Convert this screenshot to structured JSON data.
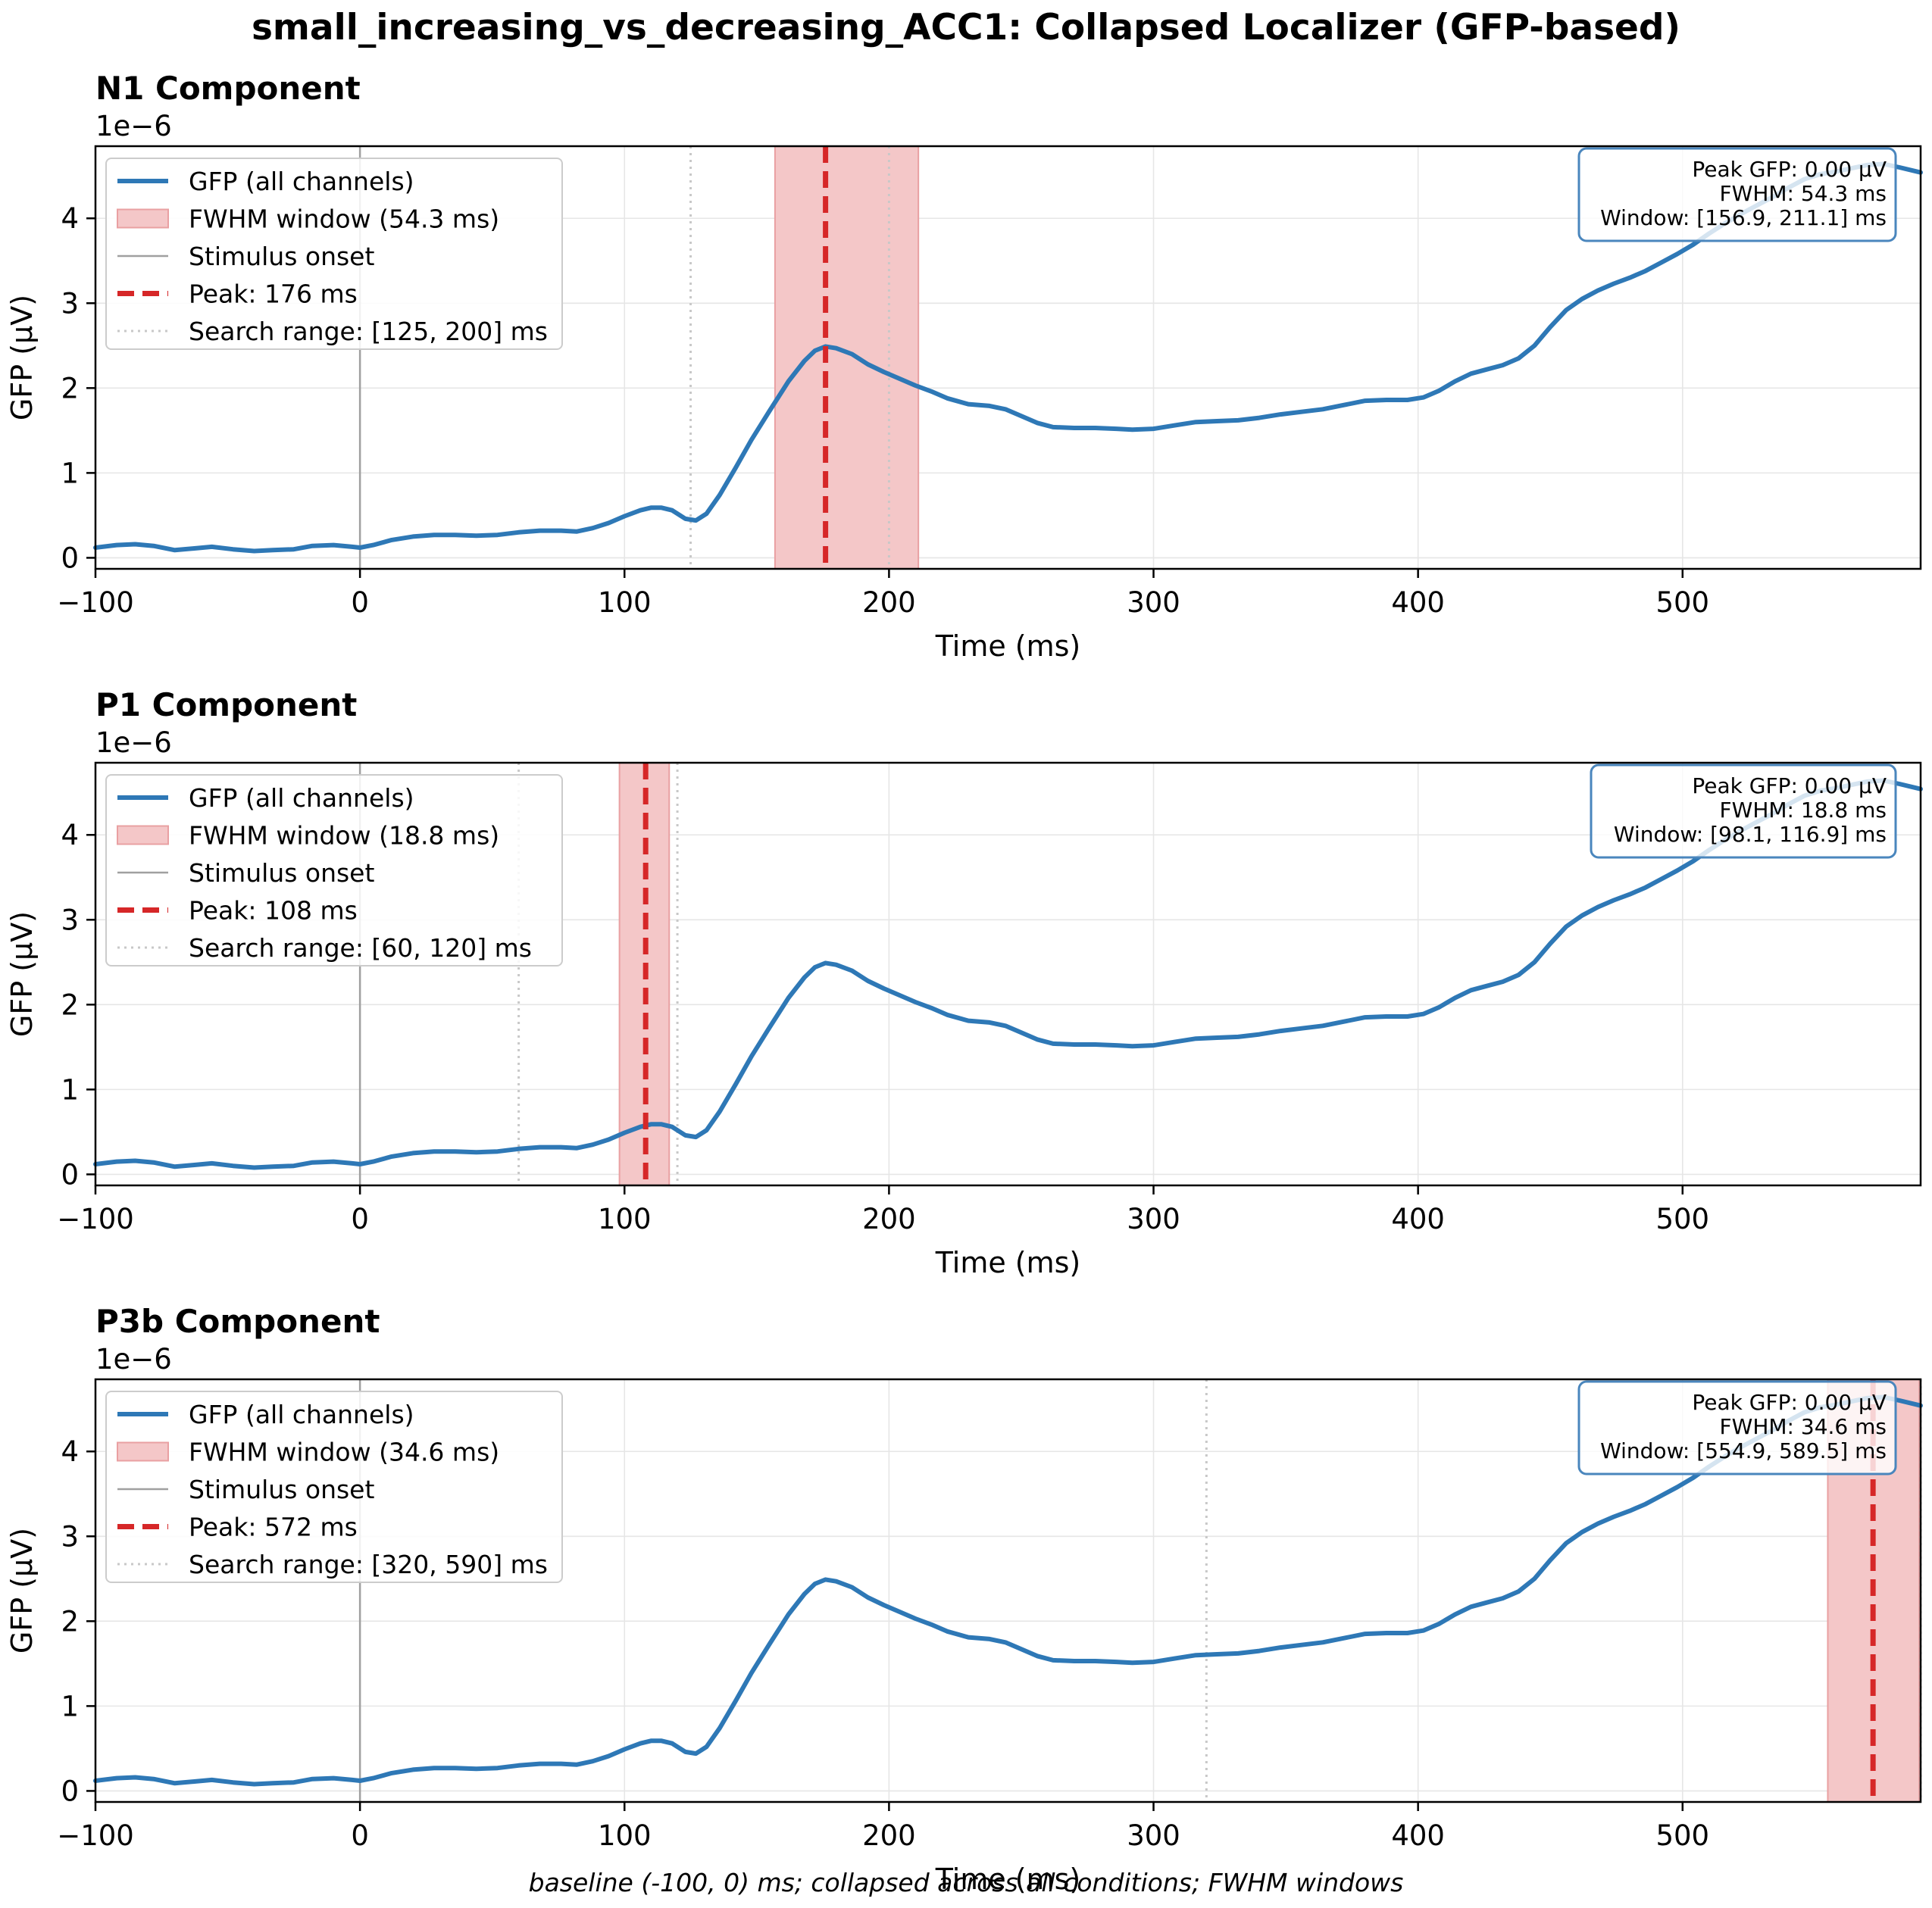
{
  "figure": {
    "title": "small_increasing_vs_decreasing_ACC1: Collapsed Localizer (GFP-based)",
    "footer": "baseline (-100, 0) ms; collapsed across all conditions; FWHM windows"
  },
  "colors": {
    "gfp_line": "#2e78b6",
    "peak_line": "#d62728",
    "fwhm_fill": "#f4c7c8",
    "onset_line": "#a0a0a0",
    "search_line": "#c8c8c8",
    "info_border": "#4a86bd",
    "grid": "#e6e6e6"
  },
  "chart_data": [
    {
      "type": "line",
      "title": "N1 Component",
      "offset_text": "1e−6",
      "xlabel": "Time (ms)",
      "ylabel": "GFP (µV)",
      "xlim": [
        -100,
        590
      ],
      "ylim": [
        -0.13,
        4.85
      ],
      "xticks": [
        -100,
        0,
        100,
        200,
        300,
        400,
        500
      ],
      "xticklabels": [
        "−100",
        "0",
        "100",
        "200",
        "300",
        "400",
        "500"
      ],
      "yticks": [
        0,
        1,
        2,
        3,
        4
      ],
      "yticklabels": [
        "0",
        "1",
        "2",
        "3",
        "4"
      ],
      "grid": true,
      "legend_position": "upper-left",
      "legend": [
        {
          "kind": "line",
          "label": "GFP (all channels)"
        },
        {
          "kind": "patch",
          "label": "FWHM window (54.3 ms)"
        },
        {
          "kind": "onset",
          "label": "Stimulus onset"
        },
        {
          "kind": "peak",
          "label": "Peak: 176 ms"
        },
        {
          "kind": "search",
          "label": "Search range: [125, 200] ms"
        }
      ],
      "info_box": [
        "Peak GFP: 0.00 µV",
        "FWHM: 54.3 ms",
        "Window: [156.9, 211.1] ms"
      ],
      "fwhm_window": [
        156.9,
        211.1
      ],
      "peak_ms": 176,
      "search_range": [
        125,
        200
      ],
      "stimulus_onset": 0
    },
    {
      "type": "line",
      "title": "P1 Component",
      "offset_text": "1e−6",
      "xlabel": "Time (ms)",
      "ylabel": "GFP (µV)",
      "xlim": [
        -100,
        590
      ],
      "ylim": [
        -0.13,
        4.85
      ],
      "xticks": [
        -100,
        0,
        100,
        200,
        300,
        400,
        500
      ],
      "xticklabels": [
        "−100",
        "0",
        "100",
        "200",
        "300",
        "400",
        "500"
      ],
      "yticks": [
        0,
        1,
        2,
        3,
        4
      ],
      "yticklabels": [
        "0",
        "1",
        "2",
        "3",
        "4"
      ],
      "grid": true,
      "legend_position": "upper-left",
      "legend": [
        {
          "kind": "line",
          "label": "GFP (all channels)"
        },
        {
          "kind": "patch",
          "label": "FWHM window (18.8 ms)"
        },
        {
          "kind": "onset",
          "label": "Stimulus onset"
        },
        {
          "kind": "peak",
          "label": "Peak: 108 ms"
        },
        {
          "kind": "search",
          "label": "Search range: [60, 120] ms"
        }
      ],
      "info_box": [
        "Peak GFP: 0.00 µV",
        "FWHM: 18.8 ms",
        "Window: [98.1, 116.9] ms"
      ],
      "fwhm_window": [
        98.1,
        116.9
      ],
      "peak_ms": 108,
      "search_range": [
        60,
        120
      ],
      "stimulus_onset": 0
    },
    {
      "type": "line",
      "title": "P3b Component",
      "offset_text": "1e−6",
      "xlabel": "Time (ms)",
      "ylabel": "GFP (µV)",
      "xlim": [
        -100,
        590
      ],
      "ylim": [
        -0.13,
        4.85
      ],
      "xticks": [
        -100,
        0,
        100,
        200,
        300,
        400,
        500
      ],
      "xticklabels": [
        "−100",
        "0",
        "100",
        "200",
        "300",
        "400",
        "500"
      ],
      "yticks": [
        0,
        1,
        2,
        3,
        4
      ],
      "yticklabels": [
        "0",
        "1",
        "2",
        "3",
        "4"
      ],
      "grid": true,
      "legend_position": "upper-left",
      "legend": [
        {
          "kind": "line",
          "label": "GFP (all channels)"
        },
        {
          "kind": "patch",
          "label": "FWHM window (34.6 ms)"
        },
        {
          "kind": "onset",
          "label": "Stimulus onset"
        },
        {
          "kind": "peak",
          "label": "Peak: 572 ms"
        },
        {
          "kind": "search",
          "label": "Search range: [320, 590] ms"
        }
      ],
      "info_box": [
        "Peak GFP: 0.00 µV",
        "FWHM: 34.6 ms",
        "Window: [554.9, 589.5] ms"
      ],
      "fwhm_window": [
        554.9,
        589.5
      ],
      "peak_ms": 572,
      "search_range": [
        320,
        590
      ],
      "stimulus_onset": 0
    }
  ],
  "gfp_series": {
    "name": "GFP (all channels)",
    "x": [
      -100,
      -92,
      -85,
      -78,
      -70,
      -63,
      -56,
      -48,
      -40,
      -33,
      -25,
      -18,
      -10,
      -3,
      0,
      5,
      12,
      20,
      28,
      36,
      44,
      52,
      60,
      68,
      76,
      82,
      88,
      94,
      100,
      106,
      110,
      114,
      118,
      123,
      127,
      131,
      136,
      142,
      148,
      155,
      162,
      168,
      172,
      176,
      180,
      186,
      192,
      198,
      204,
      210,
      216,
      222,
      230,
      238,
      244,
      250,
      256,
      262,
      270,
      278,
      286,
      292,
      300,
      308,
      316,
      324,
      332,
      340,
      348,
      356,
      364,
      372,
      380,
      388,
      396,
      402,
      408,
      414,
      420,
      426,
      432,
      438,
      444,
      450,
      456,
      462,
      468,
      474,
      480,
      486,
      492,
      498,
      504,
      510,
      516,
      522,
      528,
      534,
      540,
      546,
      552,
      558,
      564,
      570,
      576,
      582,
      590
    ],
    "y": [
      0.12,
      0.15,
      0.16,
      0.14,
      0.09,
      0.11,
      0.13,
      0.1,
      0.08,
      0.09,
      0.1,
      0.14,
      0.15,
      0.13,
      0.12,
      0.15,
      0.21,
      0.25,
      0.27,
      0.27,
      0.26,
      0.27,
      0.3,
      0.32,
      0.32,
      0.31,
      0.35,
      0.41,
      0.49,
      0.56,
      0.59,
      0.59,
      0.56,
      0.46,
      0.44,
      0.52,
      0.74,
      1.06,
      1.39,
      1.74,
      2.08,
      2.32,
      2.44,
      2.49,
      2.47,
      2.4,
      2.28,
      2.19,
      2.11,
      2.03,
      1.96,
      1.88,
      1.81,
      1.79,
      1.75,
      1.67,
      1.59,
      1.54,
      1.53,
      1.53,
      1.52,
      1.51,
      1.52,
      1.56,
      1.6,
      1.61,
      1.62,
      1.65,
      1.69,
      1.72,
      1.75,
      1.8,
      1.85,
      1.86,
      1.86,
      1.89,
      1.97,
      2.08,
      2.17,
      2.22,
      2.27,
      2.35,
      2.5,
      2.72,
      2.92,
      3.05,
      3.15,
      3.23,
      3.3,
      3.38,
      3.48,
      3.58,
      3.69,
      3.82,
      3.94,
      4.05,
      4.15,
      4.25,
      4.36,
      4.46,
      4.52,
      4.55,
      4.59,
      4.63,
      4.64,
      4.6,
      4.54
    ]
  }
}
